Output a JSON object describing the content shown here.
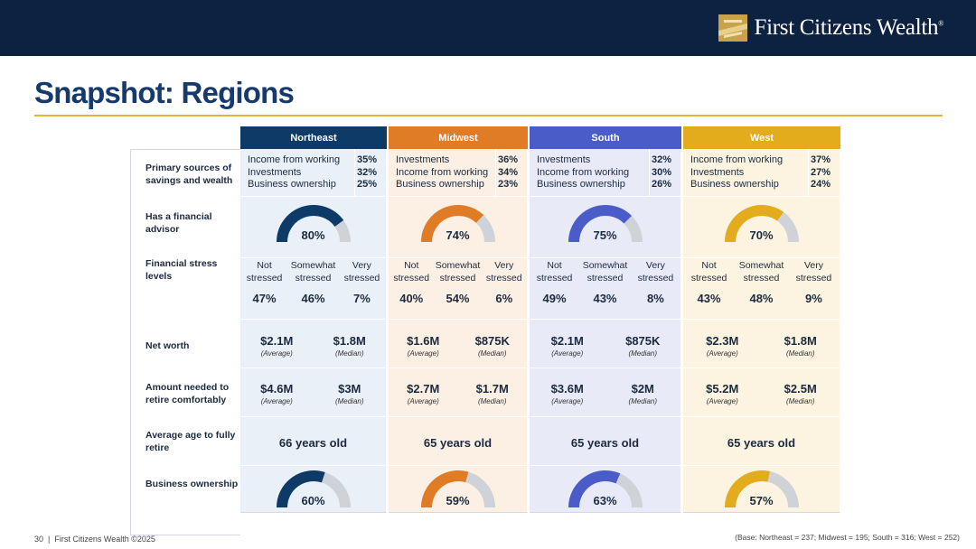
{
  "brand": {
    "name": "First Citizens Wealth",
    "trademark": "®"
  },
  "title": "Snapshot: Regions",
  "row_labels": {
    "sources": "Primary sources of savings and wealth",
    "advisor": "Has a financial advisor",
    "stress": "Financial stress levels",
    "networth": "Net worth",
    "retire": "Amount needed to retire comfortably",
    "age": "Average age to fully retire",
    "business": "Business ownership"
  },
  "labels": {
    "not_stressed": "Not stressed",
    "somewhat_stressed": "Somewhat stressed",
    "very_stressed": "Very stressed",
    "average": "(Average)",
    "median": "(Median)"
  },
  "regions": [
    {
      "name": "Northeast",
      "color": "#0d3a67",
      "bg": "#e9f0f7",
      "sources": [
        {
          "name": "Income from working",
          "value": "35%"
        },
        {
          "name": "Investments",
          "value": "32%"
        },
        {
          "name": "Business ownership",
          "value": "25%"
        }
      ],
      "advisor": "80%",
      "advisor_frac": 0.8,
      "stress": [
        "47%",
        "46%",
        "7%"
      ],
      "networth_avg": "$2.1M",
      "networth_median": "$1.8M",
      "retire_avg": "$4.6M",
      "retire_median": "$3M",
      "age": "66 years old",
      "business": "60%",
      "business_frac": 0.6
    },
    {
      "name": "Midwest",
      "color": "#e07b26",
      "bg": "#fcefe4",
      "sources": [
        {
          "name": "Investments",
          "value": "36%"
        },
        {
          "name": "Income from working",
          "value": "34%"
        },
        {
          "name": "Business ownership",
          "value": "23%"
        }
      ],
      "advisor": "74%",
      "advisor_frac": 0.74,
      "stress": [
        "40%",
        "54%",
        "6%"
      ],
      "networth_avg": "$1.6M",
      "networth_median": "$875K",
      "retire_avg": "$2.7M",
      "retire_median": "$1.7M",
      "age": "65 years old",
      "business": "59%",
      "business_frac": 0.59
    },
    {
      "name": "South",
      "color": "#4a5cc7",
      "bg": "#e8eaf8",
      "sources": [
        {
          "name": "Investments",
          "value": "32%"
        },
        {
          "name": "Income from working",
          "value": "30%"
        },
        {
          "name": "Business ownership",
          "value": "26%"
        }
      ],
      "advisor": "75%",
      "advisor_frac": 0.75,
      "stress": [
        "49%",
        "43%",
        "8%"
      ],
      "networth_avg": "$2.1M",
      "networth_median": "$875K",
      "retire_avg": "$3.6M",
      "retire_median": "$2M",
      "age": "65 years old",
      "business": "63%",
      "business_frac": 0.63
    },
    {
      "name": "West",
      "color": "#e2ac1c",
      "bg": "#fcf4e0",
      "sources": [
        {
          "name": "Income from working",
          "value": "37%"
        },
        {
          "name": "Investments",
          "value": "27%"
        },
        {
          "name": "Business ownership",
          "value": "24%"
        }
      ],
      "advisor": "70%",
      "advisor_frac": 0.7,
      "stress": [
        "43%",
        "48%",
        "9%"
      ],
      "networth_avg": "$2.3M",
      "networth_median": "$1.8M",
      "retire_avg": "$5.2M",
      "retire_median": "$2.5M",
      "age": "65 years old",
      "business": "57%",
      "business_frac": 0.57
    }
  ],
  "footer": {
    "page": "30",
    "separator": "|",
    "copyright": "First Citizens Wealth ©2025",
    "base": "(Base: Northeast = 237; Midwest = 195; South = 316; West = 252)"
  }
}
